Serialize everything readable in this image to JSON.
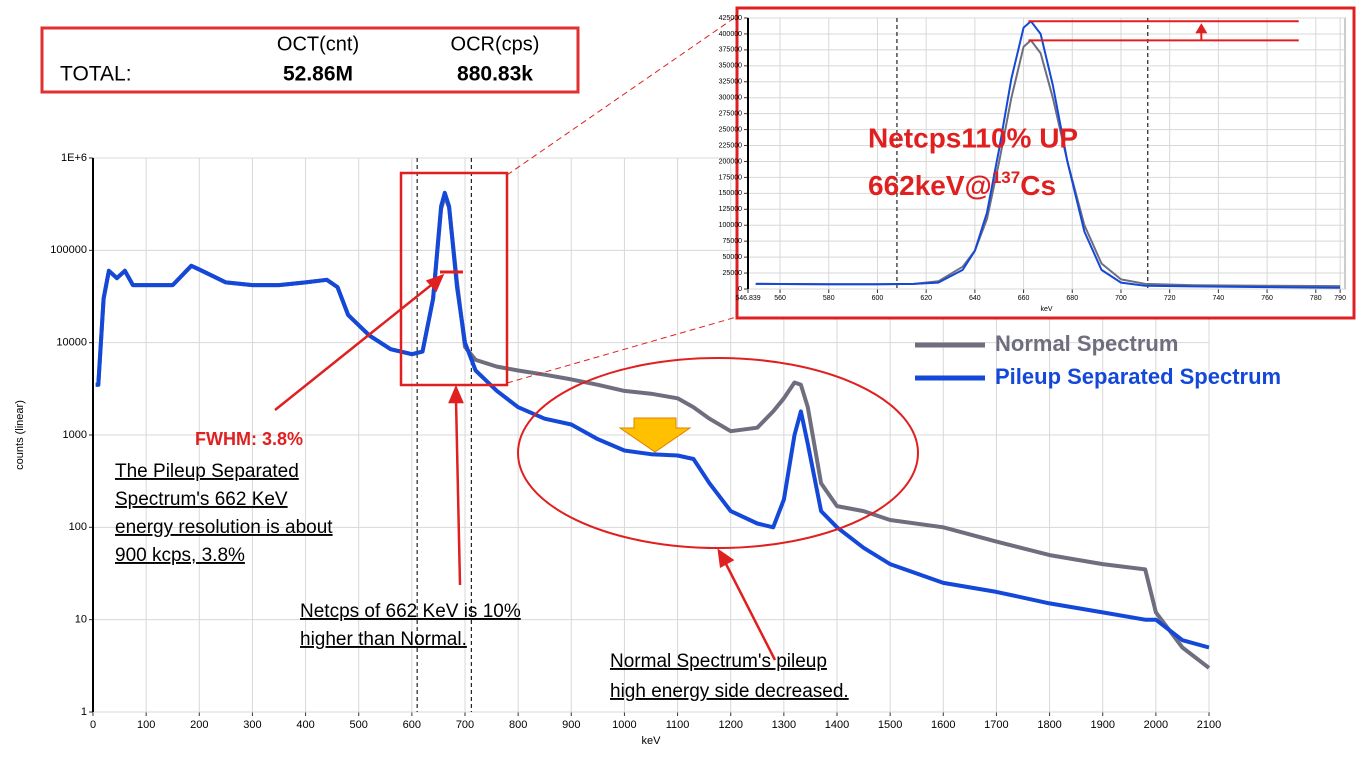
{
  "stats": {
    "headers": [
      "OCT(cnt)",
      "OCR(cps)"
    ],
    "row_label": "TOTAL:",
    "values": [
      "52.86M",
      "880.83k"
    ]
  },
  "chart_data": [
    {
      "type": "line",
      "x_label": "keV",
      "y_label": "counts (linear)",
      "log_y": true,
      "grid": true,
      "legend": "right",
      "xlim": [
        0,
        2100
      ],
      "ylim": [
        1,
        1000000
      ],
      "xticks": [
        0,
        100,
        200,
        300,
        400,
        500,
        600,
        700,
        800,
        900,
        1000,
        1100,
        1200,
        1300,
        1400,
        1500,
        1600,
        1700,
        1800,
        1900,
        2000,
        2100
      ],
      "yticks": [
        1,
        10,
        100,
        1000,
        10000,
        100000,
        {
          "value": 1000000,
          "label": "1E+6"
        }
      ],
      "roi_lines": [
        610,
        712
      ],
      "x": [
        5,
        10,
        20,
        30,
        45,
        60,
        75,
        100,
        150,
        185,
        200,
        250,
        300,
        350,
        400,
        440,
        460,
        480,
        520,
        560,
        600,
        620,
        640,
        655,
        662,
        670,
        685,
        700,
        720,
        760,
        800,
        850,
        900,
        950,
        1000,
        1050,
        1100,
        1130,
        1160,
        1200,
        1250,
        1280,
        1300,
        1320,
        1332,
        1345,
        1370,
        1400,
        1450,
        1500,
        1600,
        1700,
        1800,
        1900,
        1980,
        2000,
        2050,
        2100
      ],
      "series": [
        {
          "name": "Normal Spectrum",
          "color": "#6e6e7e",
          "values": [
            3500,
            3500,
            30000,
            60000,
            50000,
            60000,
            42000,
            42000,
            42000,
            68000,
            62000,
            45000,
            42000,
            42000,
            45000,
            48000,
            40000,
            20000,
            12000,
            8500,
            7500,
            8000,
            30000,
            280000,
            390000,
            290000,
            45000,
            9000,
            6500,
            5500,
            5000,
            4500,
            4000,
            3500,
            3000,
            2800,
            2500,
            2000,
            1500,
            1100,
            1200,
            1800,
            2500,
            3700,
            3500,
            2000,
            300,
            170,
            150,
            120,
            100,
            70,
            50,
            40,
            35,
            12,
            5,
            3
          ]
        },
        {
          "name": "Pileup Separated Spectrum",
          "color": "#1448d8",
          "values": [
            3500,
            3500,
            30000,
            60000,
            50000,
            60000,
            42000,
            42000,
            42000,
            68000,
            62000,
            45000,
            42000,
            42000,
            45000,
            48000,
            40000,
            20000,
            12000,
            8500,
            7500,
            8000,
            30000,
            300000,
            420000,
            300000,
            40000,
            10000,
            5000,
            3000,
            2000,
            1500,
            1300,
            900,
            680,
            620,
            600,
            550,
            300,
            150,
            110,
            100,
            200,
            1000,
            1800,
            800,
            150,
            100,
            60,
            40,
            25,
            20,
            15,
            12,
            10,
            10,
            6,
            5
          ]
        }
      ],
      "annotations": {
        "fwhm": "FWHM: 3.8%",
        "resolution_note": [
          "The Pileup Separated",
          "Spectrum's 662 KeV",
          "energy resolution is about",
          "900 kcps, 3.8%"
        ],
        "netcps_note": [
          "Netcps of 662 KeV is 10%",
          "higher than Normal."
        ],
        "pileup_note": [
          "Normal Spectrum's pileup",
          "high energy side decreased."
        ]
      }
    },
    {
      "type": "line",
      "x_label": "keV",
      "grid": true,
      "xlim": [
        546.839,
        792
      ],
      "ylim": [
        0,
        425000
      ],
      "xticks": [
        546.839,
        560,
        580,
        600,
        620,
        640,
        660,
        680,
        700,
        720,
        740,
        760,
        780,
        790
      ],
      "yticks": [
        0,
        25000,
        50000,
        75000,
        100000,
        125000,
        150000,
        175000,
        200000,
        225000,
        250000,
        275000,
        300000,
        325000,
        350000,
        375000,
        400000,
        425000
      ],
      "roi_lines": [
        608,
        711
      ],
      "peak_levels": [
        420000,
        390000
      ],
      "x": [
        550,
        560,
        580,
        600,
        615,
        625,
        635,
        640,
        645,
        650,
        655,
        660,
        663,
        667,
        672,
        678,
        685,
        692,
        700,
        710,
        730,
        760,
        790
      ],
      "series": [
        {
          "color": "#6e6e7e",
          "values": [
            8000,
            7800,
            7600,
            7500,
            8000,
            12000,
            35000,
            60000,
            110000,
            200000,
            300000,
            380000,
            390000,
            370000,
            300000,
            200000,
            100000,
            40000,
            15000,
            8000,
            6000,
            5000,
            4500
          ]
        },
        {
          "color": "#1448d8",
          "values": [
            8000,
            7800,
            7600,
            7500,
            8000,
            10000,
            30000,
            60000,
            120000,
            220000,
            330000,
            410000,
            420000,
            400000,
            320000,
            200000,
            90000,
            30000,
            10000,
            5000,
            4000,
            3000,
            2000
          ]
        }
      ],
      "annotations": {
        "headline": "Netcps110% UP",
        "energy": "662keV@",
        "mass": "137",
        "element": "Cs"
      }
    }
  ]
}
